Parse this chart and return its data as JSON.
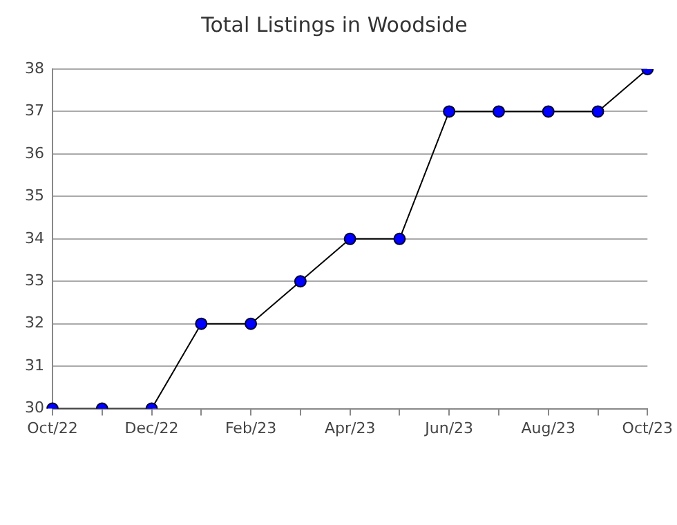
{
  "chart_data": {
    "type": "line",
    "title": "Total Listings in Woodside",
    "categories": [
      "Oct/22",
      null,
      "Dec/22",
      null,
      "Feb/23",
      null,
      "Apr/23",
      null,
      "Jun/23",
      null,
      "Aug/23",
      null,
      "Oct/23"
    ],
    "series": [
      {
        "color": "#0000ff",
        "values": [
          30,
          30,
          30,
          32,
          32,
          33,
          34,
          34,
          37,
          37,
          37,
          37,
          38
        ]
      }
    ],
    "ylim": [
      30,
      38
    ],
    "yticks": [
      30,
      31,
      32,
      33,
      34,
      35,
      36,
      37,
      38
    ],
    "grid": "y",
    "legend": false,
    "marker": "circle",
    "line_style": "solid"
  }
}
